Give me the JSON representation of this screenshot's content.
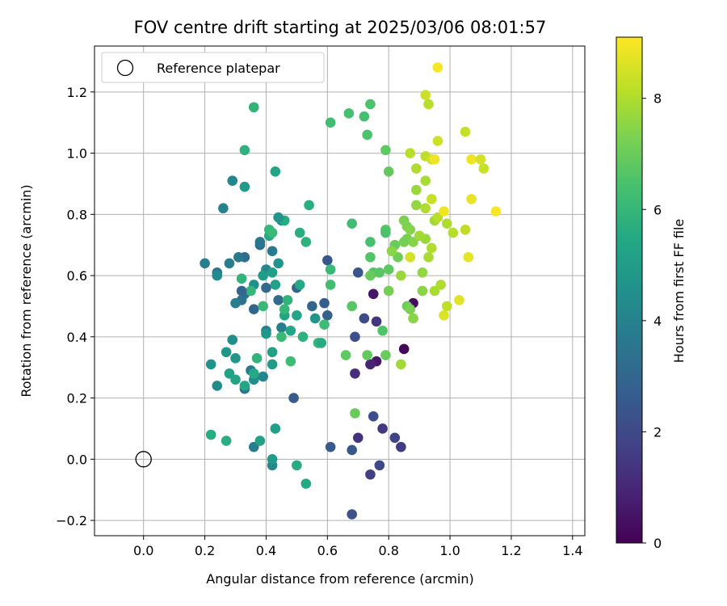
{
  "chart_data": {
    "type": "scatter",
    "title": "FOV centre drift starting at 2025/03/06 08:01:57",
    "xlabel": "Angular distance from reference (arcmin)",
    "ylabel": "Rotation from reference (arcmin)",
    "xlim": [
      -0.16,
      1.44
    ],
    "ylim": [
      -0.25,
      1.35
    ],
    "xticks": [
      0.0,
      0.2,
      0.4,
      0.6,
      0.8,
      1.0,
      1.2,
      1.4
    ],
    "xtick_labels": [
      "0.0",
      "0.2",
      "0.4",
      "0.6",
      "0.8",
      "1.0",
      "1.2",
      "1.4"
    ],
    "yticks": [
      -0.2,
      0.0,
      0.2,
      0.4,
      0.6,
      0.8,
      1.0,
      1.2
    ],
    "ytick_labels": [
      "−0.2",
      "0.0",
      "0.2",
      "0.4",
      "0.6",
      "0.8",
      "1.0",
      "1.2"
    ],
    "grid": true,
    "legend": {
      "placement": "top-left",
      "entries": [
        {
          "label": "Reference platepar",
          "marker": "open-circle"
        }
      ]
    },
    "reference_point": {
      "x": 0.0,
      "y": 0.0
    },
    "colorbar": {
      "label": "Hours from first FF file",
      "colormap": "viridis",
      "range": [
        0,
        9.1
      ],
      "ticks": [
        0,
        2,
        4,
        6,
        8
      ],
      "tick_labels": [
        "0",
        "2",
        "4",
        "6",
        "8"
      ]
    },
    "points": [
      {
        "x": 0.85,
        "y": 0.36,
        "c": 0.2
      },
      {
        "x": 0.76,
        "y": 0.32,
        "c": 0.6
      },
      {
        "x": 0.74,
        "y": 0.31,
        "c": 0.9
      },
      {
        "x": 0.75,
        "y": 0.54,
        "c": 0.5
      },
      {
        "x": 0.88,
        "y": 0.51,
        "c": 0.3
      },
      {
        "x": 0.69,
        "y": 0.28,
        "c": 1.2
      },
      {
        "x": 0.78,
        "y": 0.1,
        "c": 1.5
      },
      {
        "x": 0.7,
        "y": 0.07,
        "c": 1.3
      },
      {
        "x": 0.82,
        "y": 0.07,
        "c": 1.8
      },
      {
        "x": 0.84,
        "y": 0.04,
        "c": 1.6
      },
      {
        "x": 0.77,
        "y": -0.02,
        "c": 2.0
      },
      {
        "x": 0.74,
        "y": -0.05,
        "c": 1.7
      },
      {
        "x": 0.68,
        "y": -0.18,
        "c": 2.3
      },
      {
        "x": 0.75,
        "y": 0.14,
        "c": 2.2
      },
      {
        "x": 0.68,
        "y": 0.03,
        "c": 2.5
      },
      {
        "x": 0.61,
        "y": 0.04,
        "c": 2.6
      },
      {
        "x": 0.76,
        "y": 0.45,
        "c": 1.4
      },
      {
        "x": 0.72,
        "y": 0.46,
        "c": 2.1
      },
      {
        "x": 0.7,
        "y": 0.61,
        "c": 2.4
      },
      {
        "x": 0.69,
        "y": 0.4,
        "c": 2.2
      },
      {
        "x": 0.6,
        "y": 0.65,
        "c": 2.5
      },
      {
        "x": 0.59,
        "y": 0.51,
        "c": 2.7
      },
      {
        "x": 0.6,
        "y": 0.47,
        "c": 2.8
      },
      {
        "x": 0.55,
        "y": 0.5,
        "c": 2.9
      },
      {
        "x": 0.5,
        "y": 0.56,
        "c": 3.0
      },
      {
        "x": 0.49,
        "y": 0.2,
        "c": 2.6
      },
      {
        "x": 0.44,
        "y": 0.52,
        "c": 3.2
      },
      {
        "x": 0.4,
        "y": 0.56,
        "c": 3.1
      },
      {
        "x": 0.36,
        "y": 0.49,
        "c": 3.0
      },
      {
        "x": 0.33,
        "y": 0.54,
        "c": 3.3
      },
      {
        "x": 0.32,
        "y": 0.52,
        "c": 3.4
      },
      {
        "x": 0.33,
        "y": 0.66,
        "c": 3.2
      },
      {
        "x": 0.31,
        "y": 0.66,
        "c": 3.6
      },
      {
        "x": 0.28,
        "y": 0.64,
        "c": 3.8
      },
      {
        "x": 0.24,
        "y": 0.61,
        "c": 3.5
      },
      {
        "x": 0.2,
        "y": 0.64,
        "c": 3.9
      },
      {
        "x": 0.26,
        "y": 0.82,
        "c": 4.0
      },
      {
        "x": 0.29,
        "y": 0.91,
        "c": 4.1
      },
      {
        "x": 0.38,
        "y": 0.7,
        "c": 3.4
      },
      {
        "x": 0.38,
        "y": 0.71,
        "c": 3.6
      },
      {
        "x": 0.42,
        "y": 0.68,
        "c": 3.7
      },
      {
        "x": 0.33,
        "y": 0.23,
        "c": 3.4
      },
      {
        "x": 0.36,
        "y": 0.04,
        "c": 3.8
      },
      {
        "x": 0.42,
        "y": -0.02,
        "c": 4.2
      },
      {
        "x": 0.45,
        "y": 0.43,
        "c": 3.9
      },
      {
        "x": 0.4,
        "y": 0.42,
        "c": 4.0
      },
      {
        "x": 0.39,
        "y": 0.27,
        "c": 4.1
      },
      {
        "x": 0.35,
        "y": 0.29,
        "c": 3.7
      },
      {
        "x": 0.36,
        "y": 0.26,
        "c": 4.4
      },
      {
        "x": 0.24,
        "y": 0.24,
        "c": 4.3
      },
      {
        "x": 0.22,
        "y": 0.31,
        "c": 4.6
      },
      {
        "x": 0.29,
        "y": 0.39,
        "c": 4.5
      },
      {
        "x": 0.27,
        "y": 0.35,
        "c": 4.8
      },
      {
        "x": 0.3,
        "y": 0.33,
        "c": 4.7
      },
      {
        "x": 0.33,
        "y": 0.89,
        "c": 4.9
      },
      {
        "x": 0.45,
        "y": 0.78,
        "c": 4.6
      },
      {
        "x": 0.4,
        "y": 0.41,
        "c": 4.8
      },
      {
        "x": 0.42,
        "y": 0.31,
        "c": 5.0
      },
      {
        "x": 0.42,
        "y": 0.0,
        "c": 4.9
      },
      {
        "x": 0.36,
        "y": 0.57,
        "c": 4.5
      },
      {
        "x": 0.28,
        "y": 0.28,
        "c": 5.2
      },
      {
        "x": 0.3,
        "y": 0.26,
        "c": 5.3
      },
      {
        "x": 0.42,
        "y": 0.35,
        "c": 5.1
      },
      {
        "x": 0.43,
        "y": 0.94,
        "c": 5.3
      },
      {
        "x": 0.38,
        "y": 0.06,
        "c": 5.2
      },
      {
        "x": 0.43,
        "y": 0.1,
        "c": 5.1
      },
      {
        "x": 0.5,
        "y": -0.02,
        "c": 5.6
      },
      {
        "x": 0.53,
        "y": -0.08,
        "c": 5.5
      },
      {
        "x": 0.48,
        "y": 0.42,
        "c": 5.4
      },
      {
        "x": 0.46,
        "y": 0.47,
        "c": 5.3
      },
      {
        "x": 0.5,
        "y": 0.47,
        "c": 5.4
      },
      {
        "x": 0.51,
        "y": 0.57,
        "c": 5.5
      },
      {
        "x": 0.43,
        "y": 0.57,
        "c": 5.2
      },
      {
        "x": 0.41,
        "y": 0.73,
        "c": 5.5
      },
      {
        "x": 0.46,
        "y": 0.78,
        "c": 5.6
      },
      {
        "x": 0.51,
        "y": 0.74,
        "c": 5.7
      },
      {
        "x": 0.53,
        "y": 0.71,
        "c": 5.8
      },
      {
        "x": 0.54,
        "y": 0.83,
        "c": 5.7
      },
      {
        "x": 0.36,
        "y": 1.15,
        "c": 5.9
      },
      {
        "x": 0.33,
        "y": 1.01,
        "c": 5.8
      },
      {
        "x": 0.22,
        "y": 0.08,
        "c": 5.6
      },
      {
        "x": 0.27,
        "y": 0.06,
        "c": 5.7
      },
      {
        "x": 0.32,
        "y": 0.59,
        "c": 5.9
      },
      {
        "x": 0.35,
        "y": 0.55,
        "c": 6.0
      },
      {
        "x": 0.41,
        "y": 0.75,
        "c": 6.0
      },
      {
        "x": 0.42,
        "y": 0.74,
        "c": 6.1
      },
      {
        "x": 0.47,
        "y": 0.52,
        "c": 5.9
      },
      {
        "x": 0.46,
        "y": 0.49,
        "c": 6.0
      },
      {
        "x": 0.39,
        "y": 0.5,
        "c": 6.1
      },
      {
        "x": 0.48,
        "y": 0.32,
        "c": 6.2
      },
      {
        "x": 0.45,
        "y": 0.4,
        "c": 6.1
      },
      {
        "x": 0.57,
        "y": 0.38,
        "c": 6.0
      },
      {
        "x": 0.59,
        "y": 0.44,
        "c": 6.2
      },
      {
        "x": 0.61,
        "y": 0.62,
        "c": 6.1
      },
      {
        "x": 0.61,
        "y": 0.57,
        "c": 6.3
      },
      {
        "x": 0.61,
        "y": 1.1,
        "c": 6.3
      },
      {
        "x": 0.67,
        "y": 1.13,
        "c": 6.4
      },
      {
        "x": 0.72,
        "y": 1.12,
        "c": 6.4
      },
      {
        "x": 0.74,
        "y": 1.16,
        "c": 6.5
      },
      {
        "x": 0.73,
        "y": 1.06,
        "c": 6.5
      },
      {
        "x": 0.68,
        "y": 0.77,
        "c": 6.3
      },
      {
        "x": 0.74,
        "y": 0.71,
        "c": 6.4
      },
      {
        "x": 0.74,
        "y": 0.66,
        "c": 6.6
      },
      {
        "x": 0.75,
        "y": 0.61,
        "c": 6.6
      },
      {
        "x": 0.77,
        "y": 0.61,
        "c": 6.7
      },
      {
        "x": 0.79,
        "y": 0.75,
        "c": 6.7
      },
      {
        "x": 0.79,
        "y": 0.74,
        "c": 6.5
      },
      {
        "x": 0.8,
        "y": 0.62,
        "c": 6.8
      },
      {
        "x": 0.78,
        "y": 0.42,
        "c": 6.6
      },
      {
        "x": 0.68,
        "y": 0.5,
        "c": 6.7
      },
      {
        "x": 0.66,
        "y": 0.34,
        "c": 6.8
      },
      {
        "x": 0.73,
        "y": 0.34,
        "c": 6.9
      },
      {
        "x": 0.69,
        "y": 0.15,
        "c": 7.0
      },
      {
        "x": 0.79,
        "y": 0.34,
        "c": 7.0
      },
      {
        "x": 0.79,
        "y": 1.01,
        "c": 6.8
      },
      {
        "x": 0.8,
        "y": 0.94,
        "c": 6.9
      },
      {
        "x": 0.82,
        "y": 0.7,
        "c": 7.0
      },
      {
        "x": 0.83,
        "y": 0.66,
        "c": 7.1
      },
      {
        "x": 0.8,
        "y": 0.55,
        "c": 7.2
      },
      {
        "x": 0.86,
        "y": 0.5,
        "c": 7.1
      },
      {
        "x": 0.86,
        "y": 0.72,
        "c": 7.2
      },
      {
        "x": 0.85,
        "y": 0.78,
        "c": 7.3
      },
      {
        "x": 0.86,
        "y": 0.76,
        "c": 7.3
      },
      {
        "x": 0.88,
        "y": 0.71,
        "c": 7.4
      },
      {
        "x": 0.88,
        "y": 0.46,
        "c": 7.5
      },
      {
        "x": 0.91,
        "y": 0.55,
        "c": 7.5
      },
      {
        "x": 0.91,
        "y": 0.61,
        "c": 7.6
      },
      {
        "x": 0.84,
        "y": 0.6,
        "c": 7.7
      },
      {
        "x": 0.84,
        "y": 0.31,
        "c": 7.8
      },
      {
        "x": 0.92,
        "y": 0.72,
        "c": 7.7
      },
      {
        "x": 0.9,
        "y": 0.73,
        "c": 7.8
      },
      {
        "x": 0.93,
        "y": 0.66,
        "c": 7.9
      },
      {
        "x": 0.94,
        "y": 0.69,
        "c": 8.0
      },
      {
        "x": 0.95,
        "y": 0.55,
        "c": 7.9
      },
      {
        "x": 0.97,
        "y": 0.57,
        "c": 8.0
      },
      {
        "x": 0.95,
        "y": 0.78,
        "c": 7.8
      },
      {
        "x": 0.96,
        "y": 0.79,
        "c": 8.1
      },
      {
        "x": 0.99,
        "y": 0.77,
        "c": 8.0
      },
      {
        "x": 1.01,
        "y": 0.74,
        "c": 8.1
      },
      {
        "x": 0.99,
        "y": 0.5,
        "c": 8.2
      },
      {
        "x": 0.98,
        "y": 0.47,
        "c": 8.6
      },
      {
        "x": 1.03,
        "y": 0.52,
        "c": 8.7
      },
      {
        "x": 1.06,
        "y": 0.66,
        "c": 8.8
      },
      {
        "x": 1.05,
        "y": 0.75,
        "c": 8.2
      },
      {
        "x": 1.05,
        "y": 1.07,
        "c": 8.3
      },
      {
        "x": 1.07,
        "y": 0.98,
        "c": 8.9
      },
      {
        "x": 1.1,
        "y": 0.98,
        "c": 8.5
      },
      {
        "x": 1.11,
        "y": 0.95,
        "c": 8.3
      },
      {
        "x": 1.07,
        "y": 0.85,
        "c": 8.8
      },
      {
        "x": 1.15,
        "y": 0.81,
        "c": 9.0
      },
      {
        "x": 0.98,
        "y": 0.81,
        "c": 8.9
      },
      {
        "x": 0.94,
        "y": 0.85,
        "c": 8.3
      },
      {
        "x": 0.92,
        "y": 0.82,
        "c": 8.0
      },
      {
        "x": 0.89,
        "y": 0.83,
        "c": 7.6
      },
      {
        "x": 0.89,
        "y": 0.88,
        "c": 7.7
      },
      {
        "x": 0.92,
        "y": 0.91,
        "c": 7.9
      },
      {
        "x": 0.89,
        "y": 0.95,
        "c": 8.0
      },
      {
        "x": 0.87,
        "y": 1.0,
        "c": 8.1
      },
      {
        "x": 0.92,
        "y": 0.99,
        "c": 8.2
      },
      {
        "x": 0.94,
        "y": 0.98,
        "c": 8.4
      },
      {
        "x": 0.96,
        "y": 1.04,
        "c": 8.4
      },
      {
        "x": 0.93,
        "y": 1.16,
        "c": 8.1
      },
      {
        "x": 0.92,
        "y": 1.19,
        "c": 8.4
      },
      {
        "x": 0.96,
        "y": 1.28,
        "c": 9.0
      },
      {
        "x": 0.95,
        "y": 0.98,
        "c": 8.9
      },
      {
        "x": 0.87,
        "y": 0.66,
        "c": 8.5
      },
      {
        "x": 0.87,
        "y": 0.75,
        "c": 7.4
      },
      {
        "x": 0.85,
        "y": 0.71,
        "c": 7.2
      },
      {
        "x": 0.87,
        "y": 0.49,
        "c": 7.3
      },
      {
        "x": 0.81,
        "y": 0.68,
        "c": 7.5
      },
      {
        "x": 0.74,
        "y": 0.6,
        "c": 7.0
      },
      {
        "x": 0.52,
        "y": 0.4,
        "c": 5.8
      },
      {
        "x": 0.37,
        "y": 0.33,
        "c": 5.9
      },
      {
        "x": 0.36,
        "y": 0.28,
        "c": 5.5
      },
      {
        "x": 0.33,
        "y": 0.24,
        "c": 5.4
      },
      {
        "x": 0.4,
        "y": 0.62,
        "c": 4.2
      },
      {
        "x": 0.39,
        "y": 0.6,
        "c": 5.0
      },
      {
        "x": 0.42,
        "y": 0.61,
        "c": 5.1
      },
      {
        "x": 0.44,
        "y": 0.79,
        "c": 4.7
      },
      {
        "x": 0.56,
        "y": 0.46,
        "c": 4.8
      },
      {
        "x": 0.58,
        "y": 0.38,
        "c": 5.6
      },
      {
        "x": 0.24,
        "y": 0.6,
        "c": 4.3
      },
      {
        "x": 0.3,
        "y": 0.51,
        "c": 3.9
      },
      {
        "x": 0.32,
        "y": 0.55,
        "c": 3.0
      },
      {
        "x": 0.44,
        "y": 0.64,
        "c": 4.6
      }
    ]
  }
}
